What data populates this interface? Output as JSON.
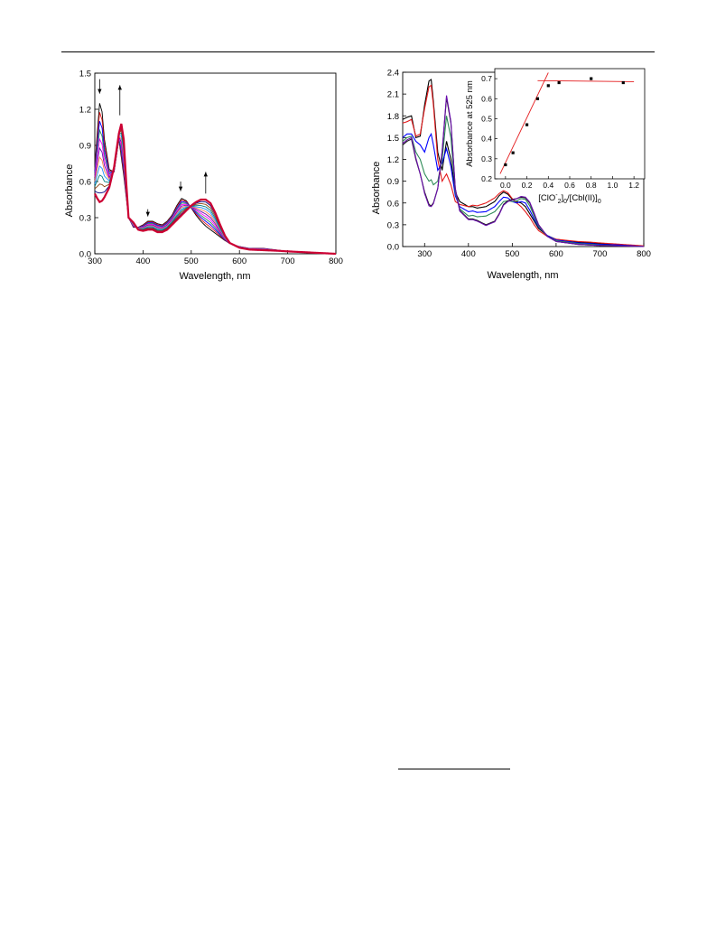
{
  "chart_data": [
    {
      "type": "line",
      "title": "",
      "xlabel": "Wavelength, nm",
      "ylabel": "Absorbance",
      "xlim": [
        300,
        800
      ],
      "ylim": [
        0,
        1.5
      ],
      "xticks": [
        300,
        400,
        500,
        600,
        700,
        800
      ],
      "yticks": [
        0.0,
        0.3,
        0.6,
        0.9,
        1.2,
        1.5
      ],
      "tick_labels_x": [
        "300",
        "400",
        "500",
        "600",
        "700",
        "800"
      ],
      "tick_labels_y": [
        "0.0",
        "0.3",
        "0.6",
        "0.9",
        "1.2",
        "1.5"
      ],
      "grid": false,
      "legend": "none",
      "series_count": 12,
      "series_colors": [
        "#000000",
        "#e41a1c",
        "#0000ff",
        "#2e8b57",
        "#ff00ff",
        "#6a0dad",
        "#ff7f50",
        "#1e90ff",
        "#008080",
        "#8b4513",
        "#000080",
        "#cc0033"
      ],
      "series_style": "family of spectra interpolating from first to last",
      "first_spectrum": {
        "x": [
          300,
          305,
          310,
          315,
          320,
          330,
          340,
          350,
          360,
          370,
          380,
          390,
          400,
          410,
          420,
          430,
          440,
          450,
          460,
          470,
          480,
          490,
          500,
          510,
          520,
          530,
          540,
          550,
          560,
          570,
          580,
          600,
          620,
          650,
          680,
          700,
          750,
          800
        ],
        "y": [
          0.72,
          1.0,
          1.25,
          1.18,
          0.95,
          0.7,
          0.68,
          0.95,
          0.65,
          0.3,
          0.22,
          0.22,
          0.24,
          0.27,
          0.27,
          0.25,
          0.24,
          0.27,
          0.32,
          0.4,
          0.46,
          0.44,
          0.38,
          0.32,
          0.27,
          0.23,
          0.2,
          0.17,
          0.14,
          0.11,
          0.085,
          0.06,
          0.045,
          0.045,
          0.03,
          0.02,
          0.01,
          0.0
        ]
      },
      "last_spectrum": {
        "x": [
          300,
          305,
          310,
          315,
          320,
          330,
          340,
          350,
          355,
          360,
          365,
          370,
          380,
          390,
          400,
          410,
          420,
          430,
          440,
          450,
          460,
          470,
          480,
          490,
          500,
          510,
          520,
          530,
          540,
          550,
          560,
          570,
          580,
          600,
          620,
          650,
          680,
          700,
          750,
          800
        ],
        "y": [
          0.5,
          0.46,
          0.43,
          0.44,
          0.47,
          0.55,
          0.72,
          1.0,
          1.08,
          0.95,
          0.6,
          0.3,
          0.26,
          0.2,
          0.19,
          0.2,
          0.2,
          0.18,
          0.18,
          0.2,
          0.24,
          0.28,
          0.32,
          0.36,
          0.4,
          0.43,
          0.45,
          0.45,
          0.42,
          0.34,
          0.24,
          0.15,
          0.09,
          0.05,
          0.035,
          0.03,
          0.025,
          0.02,
          0.01,
          0.0
        ]
      },
      "annotations": [
        {
          "type": "arrow-down",
          "x": 310,
          "y_from": 1.45,
          "y_to": 1.33
        },
        {
          "type": "arrow-up",
          "x": 352,
          "y_from": 1.15,
          "y_to": 1.4
        },
        {
          "type": "arrow-down",
          "x": 410,
          "y_from": 0.37,
          "y_to": 0.31
        },
        {
          "type": "arrow-down",
          "x": 478,
          "y_from": 0.6,
          "y_to": 0.52
        },
        {
          "type": "arrow-up",
          "x": 530,
          "y_from": 0.5,
          "y_to": 0.68
        }
      ]
    },
    {
      "type": "line",
      "title": "",
      "xlabel": "Wavelength, nm",
      "ylabel": "Absorbance",
      "xlim": [
        250,
        800
      ],
      "ylim": [
        0,
        2.4
      ],
      "xticks": [
        300,
        400,
        500,
        600,
        700,
        800
      ],
      "yticks": [
        0.0,
        0.3,
        0.6,
        0.9,
        1.2,
        1.5,
        1.8,
        2.1,
        2.4
      ],
      "tick_labels_x": [
        "300",
        "400",
        "500",
        "600",
        "700",
        "800"
      ],
      "tick_labels_y": [
        "0.0",
        "0.3",
        "0.6",
        "0.9",
        "1.2",
        "1.5",
        "1.8",
        "2.1",
        "2.4"
      ],
      "grid": false,
      "legend": "none",
      "series": [
        {
          "color": "#000000",
          "x": [
            250,
            260,
            270,
            280,
            290,
            300,
            310,
            315,
            320,
            330,
            340,
            350,
            360,
            370,
            380,
            400,
            410,
            420,
            440,
            460,
            470,
            480,
            490,
            500,
            510,
            520,
            530,
            540,
            550,
            560,
            580,
            600,
            650,
            680,
            700,
            750,
            800
          ],
          "y": [
            1.75,
            1.78,
            1.8,
            1.5,
            1.52,
            1.95,
            2.28,
            2.3,
            2.0,
            1.3,
            1.05,
            1.45,
            1.2,
            0.75,
            0.62,
            0.55,
            0.55,
            0.53,
            0.55,
            0.62,
            0.7,
            0.75,
            0.72,
            0.65,
            0.62,
            0.6,
            0.55,
            0.45,
            0.35,
            0.25,
            0.15,
            0.1,
            0.06,
            0.05,
            0.04,
            0.02,
            0.0
          ]
        },
        {
          "color": "#e41a1c",
          "x": [
            250,
            260,
            270,
            280,
            290,
            300,
            310,
            315,
            320,
            330,
            340,
            350,
            360,
            370,
            380,
            400,
            410,
            420,
            440,
            460,
            470,
            480,
            490,
            500,
            510,
            520,
            530,
            540,
            550,
            560,
            580,
            600,
            650,
            680,
            700,
            750,
            800
          ],
          "y": [
            1.7,
            1.72,
            1.75,
            1.52,
            1.55,
            1.9,
            2.2,
            2.22,
            1.95,
            1.2,
            0.9,
            1.0,
            0.85,
            0.62,
            0.58,
            0.55,
            0.57,
            0.56,
            0.6,
            0.67,
            0.73,
            0.77,
            0.74,
            0.66,
            0.6,
            0.55,
            0.48,
            0.4,
            0.3,
            0.22,
            0.14,
            0.1,
            0.07,
            0.06,
            0.05,
            0.03,
            0.01
          ]
        },
        {
          "color": "#0000ff",
          "x": [
            250,
            260,
            270,
            280,
            290,
            300,
            310,
            315,
            320,
            330,
            340,
            350,
            360,
            370,
            380,
            400,
            410,
            420,
            440,
            460,
            470,
            480,
            490,
            500,
            510,
            520,
            530,
            540,
            550,
            560,
            580,
            600,
            650,
            680,
            700,
            750,
            800
          ],
          "y": [
            1.5,
            1.55,
            1.55,
            1.45,
            1.4,
            1.3,
            1.5,
            1.55,
            1.4,
            1.05,
            1.15,
            1.35,
            1.1,
            0.7,
            0.55,
            0.48,
            0.49,
            0.47,
            0.48,
            0.55,
            0.62,
            0.68,
            0.67,
            0.62,
            0.6,
            0.62,
            0.6,
            0.5,
            0.38,
            0.27,
            0.15,
            0.09,
            0.05,
            0.04,
            0.03,
            0.02,
            0.0
          ]
        },
        {
          "color": "#2e8b57",
          "x": [
            250,
            260,
            270,
            280,
            290,
            300,
            310,
            315,
            320,
            330,
            340,
            350,
            360,
            370,
            380,
            400,
            410,
            420,
            440,
            460,
            470,
            480,
            490,
            500,
            510,
            520,
            530,
            540,
            550,
            560,
            580,
            600,
            650,
            680,
            700,
            750,
            800
          ],
          "y": [
            1.45,
            1.5,
            1.52,
            1.3,
            1.2,
            1.0,
            0.9,
            0.92,
            0.85,
            0.9,
            1.2,
            1.8,
            1.5,
            0.75,
            0.52,
            0.42,
            0.43,
            0.41,
            0.42,
            0.48,
            0.55,
            0.62,
            0.63,
            0.62,
            0.63,
            0.66,
            0.65,
            0.56,
            0.42,
            0.28,
            0.14,
            0.08,
            0.04,
            0.03,
            0.02,
            0.01,
            0.0
          ]
        },
        {
          "color": "#1a1a1a",
          "x": [
            250,
            260,
            270,
            280,
            290,
            300,
            310,
            315,
            320,
            330,
            340,
            350,
            360,
            370,
            380,
            400,
            410,
            420,
            440,
            460,
            470,
            480,
            490,
            500,
            510,
            520,
            530,
            540,
            550,
            560,
            580,
            600,
            650,
            680,
            700,
            750,
            800
          ],
          "y": [
            1.4,
            1.45,
            1.48,
            1.2,
            1.0,
            0.75,
            0.58,
            0.56,
            0.6,
            0.8,
            1.3,
            2.05,
            1.7,
            0.8,
            0.5,
            0.38,
            0.38,
            0.36,
            0.3,
            0.35,
            0.45,
            0.58,
            0.63,
            0.65,
            0.66,
            0.68,
            0.67,
            0.6,
            0.45,
            0.3,
            0.14,
            0.07,
            0.03,
            0.02,
            0.015,
            0.01,
            0.0
          ]
        },
        {
          "color": "#6a0dad",
          "x": [
            250,
            260,
            270,
            280,
            290,
            300,
            310,
            315,
            320,
            330,
            340,
            350,
            360,
            370,
            380,
            400,
            410,
            420,
            440,
            460,
            470,
            480,
            490,
            500,
            510,
            520,
            530,
            540,
            550,
            560,
            580,
            600,
            650,
            680,
            700,
            750,
            800
          ],
          "y": [
            1.42,
            1.47,
            1.5,
            1.22,
            1.0,
            0.73,
            0.56,
            0.55,
            0.59,
            0.8,
            1.32,
            2.08,
            1.72,
            0.8,
            0.49,
            0.37,
            0.37,
            0.35,
            0.29,
            0.34,
            0.44,
            0.57,
            0.62,
            0.64,
            0.66,
            0.69,
            0.68,
            0.61,
            0.46,
            0.3,
            0.14,
            0.07,
            0.03,
            0.02,
            0.015,
            0.01,
            0.0
          ]
        }
      ],
      "inset": {
        "type": "scatter",
        "xlabel": "[ClO",
        "xlabel_sup": "-",
        "xlabel_sub": "2",
        "xlabel_mid": "]",
        "xlabel_sub2": "0",
        "xlabel_rest": "/[Cbl(II)]",
        "xlabel_sub3": "0",
        "ylabel": "Absorbance at 525 nm",
        "xlim": [
          -0.1,
          1.3
        ],
        "ylim": [
          0.2,
          0.75
        ],
        "xticks": [
          0.0,
          0.2,
          0.4,
          0.6,
          0.8,
          1.0,
          1.2
        ],
        "yticks": [
          0.2,
          0.3,
          0.4,
          0.5,
          0.6,
          0.7
        ],
        "tick_labels_x": [
          "0.0",
          "0.2",
          "0.4",
          "0.6",
          "0.8",
          "1.0",
          "1.2"
        ],
        "tick_labels_y": [
          "0.2",
          "0.3",
          "0.4",
          "0.5",
          "0.6",
          "0.7"
        ],
        "points": {
          "x": [
            0.0,
            0.07,
            0.2,
            0.3,
            0.4,
            0.5,
            0.8,
            1.1
          ],
          "y": [
            0.27,
            0.33,
            0.47,
            0.6,
            0.665,
            0.68,
            0.7,
            0.68
          ]
        },
        "fit_lines": [
          {
            "color": "#e41a1c",
            "x": [
              -0.05,
              0.4
            ],
            "y": [
              0.225,
              0.73
            ]
          },
          {
            "color": "#e41a1c",
            "x": [
              0.3,
              1.2
            ],
            "y": [
              0.69,
              0.685
            ]
          }
        ]
      }
    }
  ]
}
